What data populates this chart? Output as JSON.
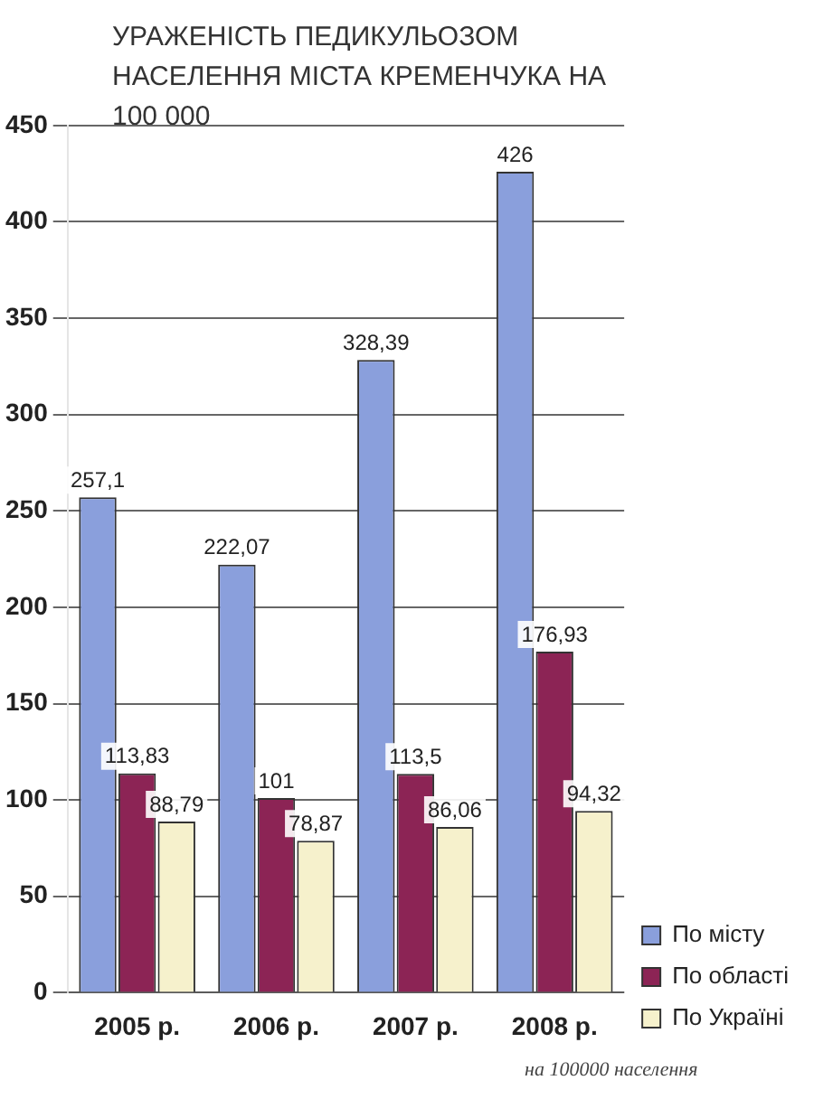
{
  "chart_data": {
    "type": "bar",
    "title": "УРАЖЕНІСТЬ ПЕДИКУЛЬОЗОМ НАСЕЛЕННЯ МІСТА КРЕМЕНЧУКА НА 100 000",
    "categories": [
      "2005 р.",
      "2006 р.",
      "2007 р.",
      "2008 р."
    ],
    "series": [
      {
        "name": "По місту",
        "color": "#8a9fdc",
        "values": [
          257.1,
          222.07,
          328.39,
          426
        ],
        "value_labels": [
          "257,1",
          "222,07",
          "328,39",
          "426"
        ]
      },
      {
        "name": "По області",
        "color": "#8c2455",
        "values": [
          113.83,
          101,
          113.5,
          176.93
        ],
        "value_labels": [
          "113,83",
          "101",
          "113,5",
          "176,93"
        ]
      },
      {
        "name": "По Україні",
        "color": "#f6f1cc",
        "values": [
          88.79,
          78.87,
          86.06,
          94.32
        ],
        "value_labels": [
          "88,79",
          "78,87",
          "86,06",
          "94,32"
        ]
      }
    ],
    "ylim": [
      0,
      450
    ],
    "yticks": [
      0,
      50,
      100,
      150,
      200,
      250,
      300,
      350,
      400,
      450
    ],
    "grid": "y",
    "legend": "bottom right",
    "annotations": [
      "на 100000 населення"
    ]
  }
}
